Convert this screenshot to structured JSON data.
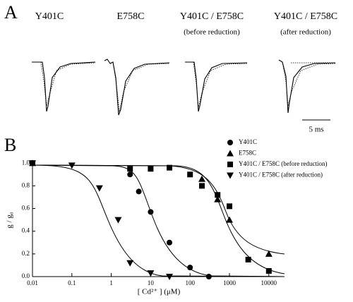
{
  "panel_labels": [
    "A",
    "B"
  ],
  "traces": [
    {
      "title": "Y401C"
    },
    {
      "title": "E758C"
    },
    {
      "title": "Y401C / E758C",
      "subtitle": "(before reduction)"
    },
    {
      "title": "Y401C / E758C",
      "subtitle": "(after reduction)"
    }
  ],
  "scale_bar": "5 ms",
  "chart_data": {
    "type": "scatter",
    "x_label": "[ Cd²⁺ ] (μM)",
    "y_label": "g / g₀",
    "xscale": "log",
    "xlim": [
      0.01,
      25000
    ],
    "ylim": [
      0,
      1.02
    ],
    "xticks": [
      0.01,
      0.1,
      1,
      10,
      100,
      1000,
      10000
    ],
    "yticks": [
      {
        "value": 0,
        "label": "0.0"
      },
      {
        "value": 0.2,
        "label": "0.2"
      },
      {
        "value": 0.4,
        "label": "0.4"
      },
      {
        "value": 0.6,
        "label": "0.6"
      },
      {
        "value": 0.8,
        "label": "0.8"
      },
      {
        "value": 1,
        "label": "1.0"
      }
    ],
    "legend": "top-right",
    "series": [
      {
        "name": "Y401C",
        "marker": "circle",
        "color": "#000000",
        "x": [
          0.01,
          3,
          5,
          10,
          30,
          100,
          300
        ],
        "values": [
          1.0,
          0.9,
          0.75,
          0.57,
          0.3,
          0.08,
          0.0
        ]
      },
      {
        "name": "E758C",
        "marker": "triangle",
        "color": "#000000",
        "x": [
          0.01,
          200,
          500,
          1000,
          10000
        ],
        "values": [
          1.0,
          0.86,
          0.68,
          0.5,
          0.2
        ]
      },
      {
        "name": "Y401C / E758C  (before reduction)",
        "marker": "square",
        "color": "#000000",
        "x": [
          0.01,
          3,
          10,
          30,
          100,
          200,
          500,
          1000,
          3000,
          10000
        ],
        "values": [
          1.0,
          0.95,
          0.95,
          0.96,
          0.9,
          0.8,
          0.72,
          0.62,
          0.15,
          0.05
        ]
      },
      {
        "name": "Y401C / E758C  (after reduction)",
        "marker": "triangle-down",
        "color": "#000000",
        "x": [
          0.01,
          0.1,
          0.5,
          1.5,
          3,
          10,
          30
        ],
        "values": [
          1.0,
          0.98,
          0.78,
          0.5,
          0.12,
          0.03,
          0.0
        ]
      }
    ]
  }
}
